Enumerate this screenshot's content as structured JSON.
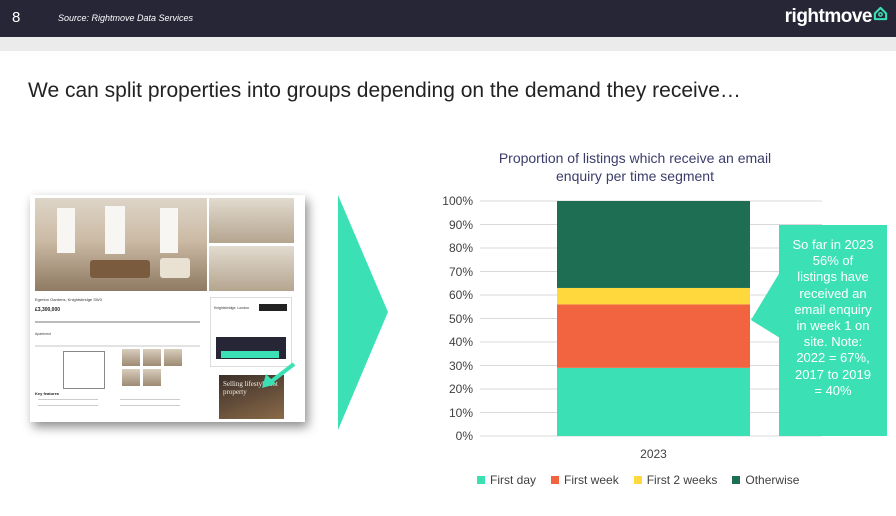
{
  "header": {
    "page_number": "8",
    "source": "Source: Rightmove Data Services",
    "logo_text": "rightmove"
  },
  "headline": "We can split properties into groups depending on the demand they receive…",
  "screenshot": {
    "address": "Egerton Gardens, Knightsbridge SW3",
    "price": "£3,300,000",
    "property_type": "Apartment",
    "agent": "Knightsbridge, London",
    "key_features_heading": "Key features",
    "ad_text": "Selling lifestyle not property"
  },
  "colors": {
    "first_day": "#3be1b4",
    "first_week": "#f26440",
    "first_2_weeks": "#ffd83d",
    "otherwise": "#1d6e52",
    "callout": "#3be1b4",
    "header_bg": "#262637"
  },
  "callout": {
    "lines": [
      "So far in 2023",
      "56% of",
      "listings have",
      "received an",
      "email enquiry",
      "in week 1 on",
      "site. Note:",
      "2022 = 67%,",
      "2017 to 2019",
      "= 40%"
    ]
  },
  "chart_data": {
    "type": "bar",
    "stacked": true,
    "title_lines": [
      "Proportion of listings which receive an email",
      "enquiry per time segment"
    ],
    "categories": [
      "2023"
    ],
    "yticks": [
      "100%",
      "90%",
      "80%",
      "70%",
      "60%",
      "50%",
      "40%",
      "30%",
      "20%",
      "10%",
      "0%"
    ],
    "ylim": [
      0,
      100
    ],
    "grid": true,
    "legend_position": "bottom",
    "series": [
      {
        "name": "First day",
        "values": [
          29
        ]
      },
      {
        "name": "First week",
        "values": [
          27
        ]
      },
      {
        "name": "First 2 weeks",
        "values": [
          7
        ]
      },
      {
        "name": "Otherwise",
        "values": [
          37
        ]
      }
    ]
  }
}
